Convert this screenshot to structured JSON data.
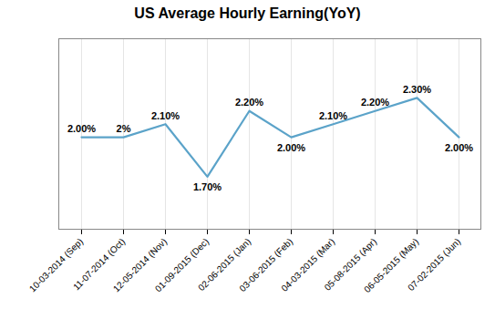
{
  "chart_data": {
    "type": "line",
    "title": "US Average Hourly  Earning(YoY)",
    "categories": [
      "10-03-2014 (Sep)",
      "11-07-2014 (Oct)",
      "12-05-2014 (Nov)",
      "01-09-2015 (Dec)",
      "02-06-2015 (Jan)",
      "03-06-2015 (Feb)",
      "04-03-2015 (Mar)",
      "05-08-2015 (Apr)",
      "06-05-2015 (May)",
      "07-02-2015 (Jun)"
    ],
    "values": [
      2.0,
      2.0,
      2.1,
      1.7,
      2.2,
      2.0,
      2.1,
      2.2,
      2.3,
      2.0
    ],
    "value_labels": [
      "2.00%",
      "2%",
      "2.10%",
      "1.70%",
      "2.20%",
      "2.00%",
      "2.10%",
      "2.20%",
      "2.30%",
      "2.00%"
    ],
    "data_labels": true,
    "color": "#5ba3c9",
    "ylim": [
      1.3,
      2.75
    ],
    "grid": true,
    "tick_labels": "x"
  }
}
